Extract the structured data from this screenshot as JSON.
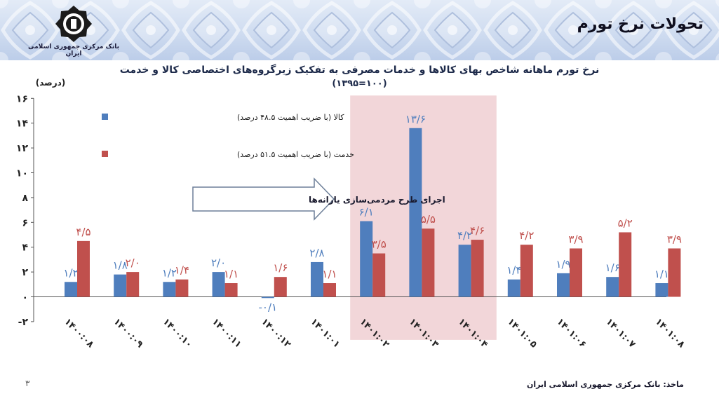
{
  "header": {
    "title": "تحولات نرخ تورم",
    "logo_text": "بانک مرکزی جمهوری اسلامی ایران"
  },
  "chart_data": {
    "type": "bar",
    "title": "نرخ تورم ماهانه شاخص بهای کالاها و خدمات مصرفی به تفکیک زیرگروه‌های اختصاصی کالا و خدمت",
    "subtitle": "(۱۰۰=۱۳۹۵)",
    "ylabel": "(درصد)",
    "ylim": [
      -2,
      16
    ],
    "yticks": [
      -2,
      0,
      2,
      4,
      6,
      8,
      10,
      12,
      14,
      16
    ],
    "ytick_labels": [
      "-۲",
      "۰",
      "۲",
      "۴",
      "۶",
      "۸",
      "۱۰",
      "۱۲",
      "۱۴",
      "۱۶"
    ],
    "categories": [
      "۱۴۰۰:۰۸",
      "۱۴۰۰:۰۹",
      "۱۴۰۰:۱۰",
      "۱۴۰۰:۱۱",
      "۱۴۰۰:۱۲",
      "۱۴۰۱:۰۱",
      "۱۴۰۱:۰۲",
      "۱۴۰۱:۰۳",
      "۱۴۰۱:۰۴",
      "۱۴۰۱:۰۵",
      "۱۴۰۱:۰۶",
      "۱۴۰۱:۰۷",
      "۱۴۰۱:۰۸"
    ],
    "series": [
      {
        "name": "کالا (با ضریب اهمیت ۴۸.۵ درصد)",
        "color": "#4f7ebd",
        "values": [
          1.2,
          1.8,
          1.2,
          2.0,
          -0.1,
          2.8,
          6.1,
          13.6,
          4.2,
          1.4,
          1.9,
          1.6,
          1.1
        ],
        "labels": [
          "۱/۲",
          "۱/۸",
          "۱/۲",
          "۲/۰",
          "-۰/۱",
          "۲/۸",
          "۶/۱",
          "۱۳/۶",
          "۴/۲",
          "۱/۴",
          "۱/۹",
          "۱/۶",
          "۱/۱"
        ]
      },
      {
        "name": "خدمت (با ضریب اهمیت ۵۱.۵ درصد)",
        "color": "#c0504d",
        "values": [
          4.5,
          2.0,
          1.4,
          1.1,
          1.6,
          1.1,
          3.5,
          5.5,
          4.6,
          4.2,
          3.9,
          5.2,
          3.9
        ],
        "labels": [
          "۴/۵",
          "۲/۰",
          "۱/۴",
          "۱/۱",
          "۱/۶",
          "۱/۱",
          "۳/۵",
          "۵/۵",
          "۴/۶",
          "۴/۲",
          "۳/۹",
          "۵/۲",
          "۳/۹"
        ]
      }
    ],
    "legend_position": "top-left",
    "grid": false,
    "highlight": {
      "from_category": "۱۴۰۱:۰۲",
      "to_category": "۱۴۰۱:۰۴",
      "color": "#f2d6d9"
    },
    "annotation": "اجرای طرح مردمی‌سازی یارانه‌ها"
  },
  "footer": {
    "source": "ماخذ: بانک مرکزی جمهوری اسلامی ایران",
    "page_number": "۳"
  }
}
